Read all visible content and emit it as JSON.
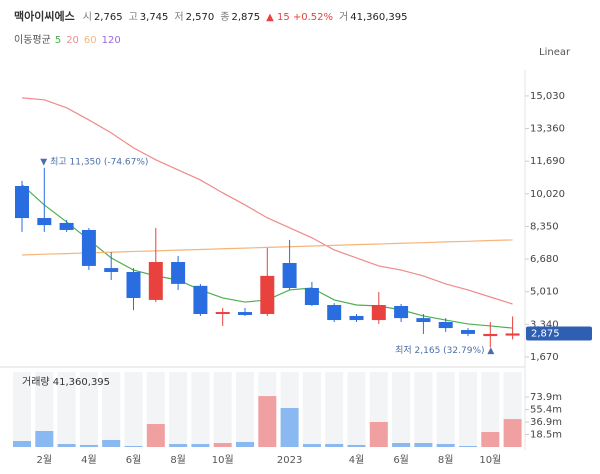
{
  "header": {
    "title": "맥아이씨에스",
    "items": [
      {
        "label": "시",
        "value": "2,765"
      },
      {
        "label": "고",
        "value": "3,745"
      },
      {
        "label": "저",
        "value": "2,570"
      },
      {
        "label": "종",
        "value": "2,875"
      },
      {
        "label": "",
        "value": "▲ 15 +0.52%"
      },
      {
        "label": "거",
        "value": "41,360,395"
      }
    ]
  },
  "chart_data": {
    "type": "candlestick",
    "scale_label": "Linear",
    "ma_title": "이동평균",
    "categories": [
      null,
      "2월",
      null,
      "4월",
      null,
      "6월",
      null,
      "8월",
      null,
      "10월",
      null,
      null,
      "2023",
      null,
      null,
      "4월",
      null,
      "6월",
      null,
      "8월",
      null,
      "10월",
      null
    ],
    "open": [
      10420,
      8780,
      8530,
      8170,
      6220,
      6020,
      4590,
      6530,
      5310,
      3870,
      3970,
      3870,
      6480,
      5200,
      4330,
      3770,
      3560,
      4280,
      3660,
      3460,
      3050,
      2740,
      2765
    ],
    "high": [
      10680,
      11350,
      8680,
      8270,
      7040,
      6220,
      8270,
      6840,
      5410,
      4180,
      4180,
      7250,
      7660,
      5510,
      4430,
      3870,
      5000,
      4380,
      3870,
      3660,
      3150,
      3460,
      3745
    ],
    "low": [
      8070,
      8070,
      8070,
      6120,
      5610,
      4070,
      4480,
      5100,
      3770,
      3260,
      3770,
      3770,
      5100,
      4280,
      3460,
      3460,
      3360,
      3460,
      2850,
      2950,
      2740,
      2165,
      2570
    ],
    "close": [
      8780,
      8420,
      8170,
      6330,
      6020,
      4690,
      6530,
      5410,
      3870,
      3970,
      3820,
      5820,
      5200,
      4330,
      3560,
      3560,
      4330,
      3660,
      3460,
      3150,
      2850,
      2850,
      2875
    ],
    "up_color": "#e8413e",
    "down_color": "#2a6de0",
    "series": [
      {
        "name": "5",
        "color": "#4caf50",
        "values": [
          10480,
          9450,
          8580,
          7660,
          6740,
          6120,
          5820,
          5610,
          5100,
          4690,
          4480,
          4590,
          5100,
          5200,
          4590,
          4330,
          4280,
          4080,
          3770,
          3560,
          3360,
          3260,
          3150
        ]
      },
      {
        "name": "20",
        "color": "#f08a8a",
        "values": [
          14930,
          14830,
          14420,
          13800,
          13140,
          12370,
          11760,
          11240,
          10730,
          10070,
          9450,
          8790,
          8280,
          7770,
          7150,
          6740,
          6330,
          6120,
          5820,
          5410,
          5100,
          4740,
          4380
        ]
      },
      {
        "name": "60",
        "color": "#f5b57a",
        "values": [
          6890,
          6930,
          6960,
          7000,
          7030,
          7070,
          7100,
          7140,
          7170,
          7210,
          7240,
          7280,
          7310,
          7350,
          7380,
          7420,
          7450,
          7490,
          7520,
          7560,
          7590,
          7630,
          7660
        ]
      },
      {
        "name": "120",
        "color": "#9c6ade",
        "values": [
          null,
          null,
          null,
          null,
          null,
          null,
          null,
          null,
          null,
          null,
          null,
          null,
          null,
          null,
          null,
          null,
          null,
          null,
          null,
          null,
          null,
          null,
          null
        ]
      }
    ],
    "ylim": [
      1260,
      16100
    ],
    "yticks": [
      {
        "value": 15030,
        "label": "15,030"
      },
      {
        "value": 13360,
        "label": "13,360"
      },
      {
        "value": 11690,
        "label": "11,690"
      },
      {
        "value": 10020,
        "label": "10,020"
      },
      {
        "value": 8350,
        "label": "8,350"
      },
      {
        "value": 6680,
        "label": "6,680"
      },
      {
        "value": 5010,
        "label": "5,010"
      },
      {
        "value": 3340,
        "label": "3,340"
      },
      {
        "value": 1670,
        "label": "1,670"
      }
    ],
    "price_tag": {
      "value": 2875,
      "label": "2,875"
    },
    "annotations": [
      {
        "text": "▼ 최고 11,350 (-74.67%)",
        "value": 11350,
        "index": 1
      },
      {
        "text": "최저 2,165 (32.79%) ▲",
        "value": 2165,
        "index": 21
      }
    ],
    "volume": {
      "title": "거래량 41,360,395",
      "values": [
        8.9,
        23.7,
        4.4,
        3,
        10.4,
        1.5,
        34,
        4.4,
        4.4,
        5.9,
        7.4,
        75.4,
        57.7,
        4.4,
        4.4,
        3,
        37,
        5.9,
        5.9,
        4.4,
        1.5,
        22.2,
        41.36
      ],
      "up_color": "#f0a0a0",
      "down_color": "#8ab8f0",
      "ylim": [
        0,
        114
      ],
      "yticks": [
        {
          "value": 73.9,
          "label": "73.9m"
        },
        {
          "value": 55.4,
          "label": "55.4m"
        },
        {
          "value": 36.9,
          "label": "36.9m"
        },
        {
          "value": 18.5,
          "label": "18.5m"
        }
      ]
    }
  }
}
